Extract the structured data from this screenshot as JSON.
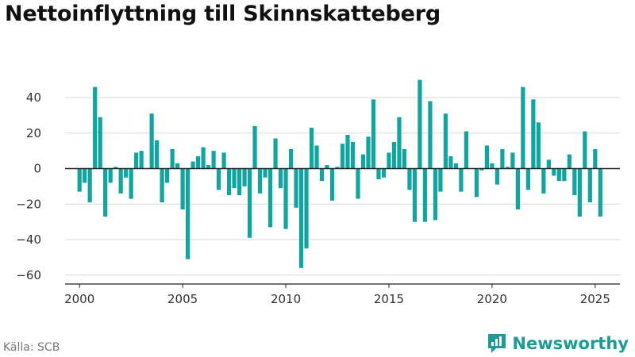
{
  "title": "Nettoinflyttning till Skinnskatteberg",
  "source": "Källa: SCB",
  "brand": {
    "name": "Newsworthy",
    "icon": "newsworthy-logo-icon"
  },
  "colors": {
    "bar": "#0fa5a0",
    "axis": "#222222",
    "grid": "#d9d9d9",
    "brand": "#1e9b96"
  },
  "chart_data": {
    "type": "bar",
    "title": "Nettoinflyttning till Skinnskatteberg",
    "xlabel": "",
    "ylabel": "",
    "x_tick_labels": [
      "2000",
      "2005",
      "2010",
      "2015",
      "2020",
      "2025"
    ],
    "x_ticks": [
      2000,
      2005,
      2010,
      2015,
      2020,
      2025
    ],
    "y_tick_labels": [
      "−60",
      "−40",
      "−20",
      "0",
      "20",
      "40"
    ],
    "y_ticks": [
      -60,
      -40,
      -20,
      0,
      20,
      40
    ],
    "xlim": [
      1999.3,
      2026.2
    ],
    "ylim": [
      -65,
      57
    ],
    "grid": "horizontal",
    "x": [
      2000.0,
      2000.25,
      2000.5,
      2000.75,
      2001.0,
      2001.25,
      2001.5,
      2001.75,
      2002.0,
      2002.25,
      2002.5,
      2002.75,
      2003.0,
      2003.25,
      2003.5,
      2003.75,
      2004.0,
      2004.25,
      2004.5,
      2004.75,
      2005.0,
      2005.25,
      2005.5,
      2005.75,
      2006.0,
      2006.25,
      2006.5,
      2006.75,
      2007.0,
      2007.25,
      2007.5,
      2007.75,
      2008.0,
      2008.25,
      2008.5,
      2008.75,
      2009.0,
      2009.25,
      2009.5,
      2009.75,
      2010.0,
      2010.25,
      2010.5,
      2010.75,
      2011.0,
      2011.25,
      2011.5,
      2011.75,
      2012.0,
      2012.25,
      2012.5,
      2012.75,
      2013.0,
      2013.25,
      2013.5,
      2013.75,
      2014.0,
      2014.25,
      2014.5,
      2014.75,
      2015.0,
      2015.25,
      2015.5,
      2015.75,
      2016.0,
      2016.25,
      2016.5,
      2016.75,
      2017.0,
      2017.25,
      2017.5,
      2017.75,
      2018.0,
      2018.25,
      2018.5,
      2018.75,
      2019.0,
      2019.25,
      2019.5,
      2019.75,
      2020.0,
      2020.25,
      2020.5,
      2020.75,
      2021.0,
      2021.25,
      2021.5,
      2021.75,
      2022.0,
      2022.25,
      2022.5,
      2022.75,
      2023.0,
      2023.25,
      2023.5,
      2023.75,
      2024.0,
      2024.25,
      2024.5,
      2024.75,
      2025.0,
      2025.25
    ],
    "values": [
      -13,
      -8,
      -19,
      46,
      29,
      -27,
      -8,
      1,
      -14,
      -5,
      -17,
      9,
      10,
      0,
      31,
      16,
      -19,
      -8,
      11,
      3,
      -23,
      -51,
      4,
      7,
      12,
      2,
      10,
      -12,
      9,
      -15,
      -11,
      -15,
      -10,
      -39,
      24,
      -14,
      -5,
      -33,
      17,
      -11,
      -34,
      11,
      -22,
      -56,
      -45,
      23,
      13,
      -7,
      2,
      -18,
      1,
      14,
      19,
      15,
      -17,
      8,
      18,
      39,
      -6,
      -5,
      9,
      15,
      29,
      11,
      -12,
      -30,
      50,
      -30,
      38,
      -29,
      -13,
      31,
      7,
      3,
      -13,
      21,
      0,
      -16,
      -1,
      13,
      3,
      -9,
      11,
      1,
      9,
      -23,
      46,
      -12,
      39,
      26,
      -14,
      5,
      -4,
      -7,
      -7,
      8,
      -15,
      -27,
      21,
      -19,
      11,
      -27
    ]
  }
}
